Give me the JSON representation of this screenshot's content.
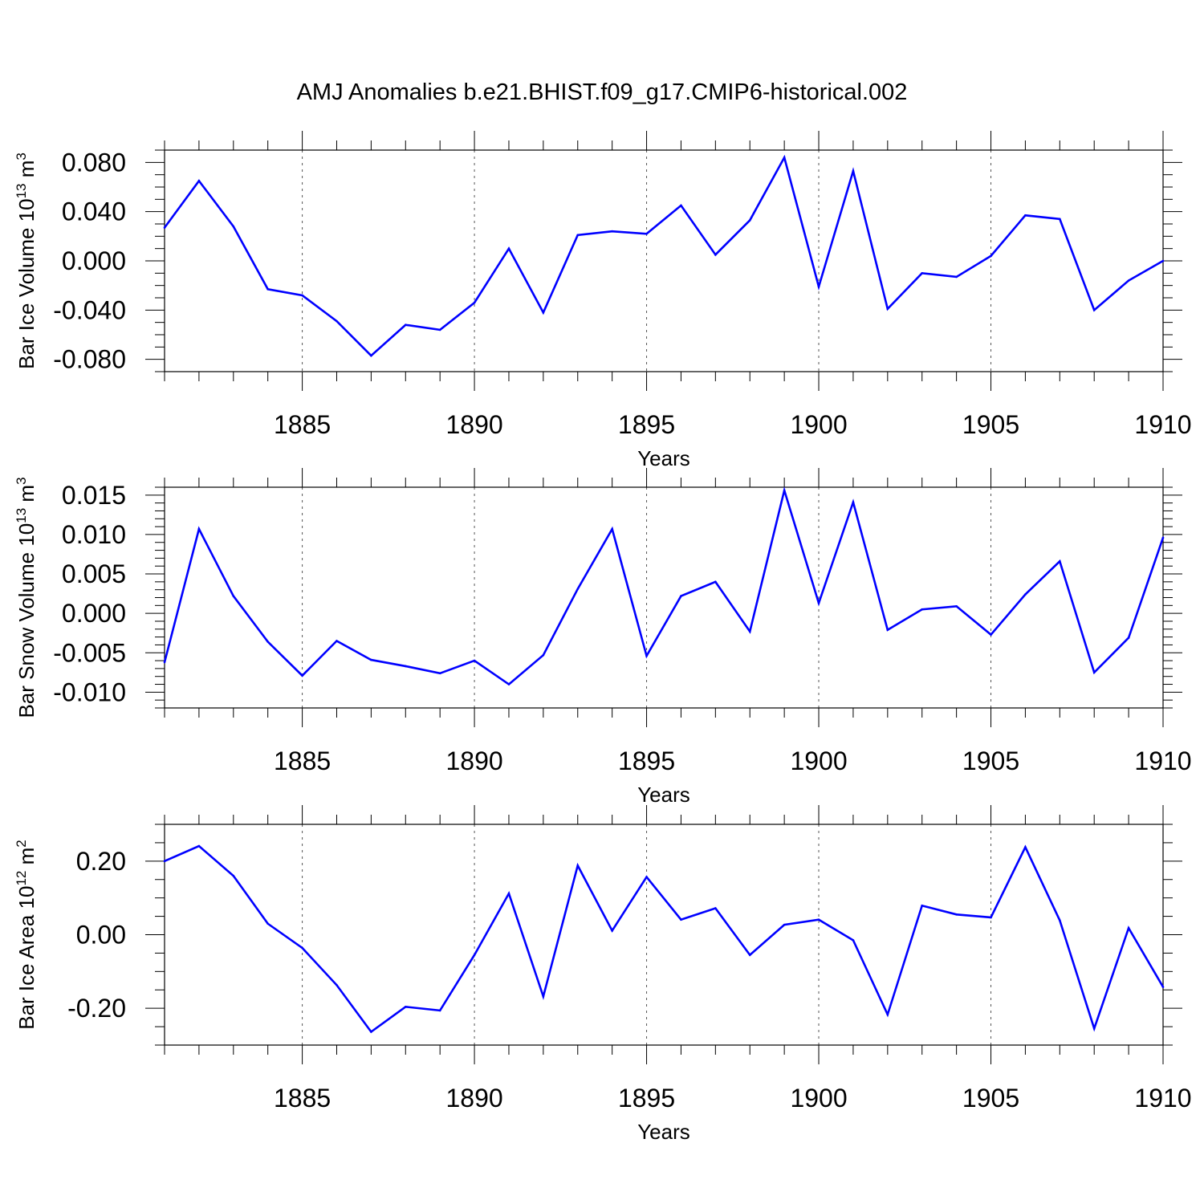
{
  "title": "AMJ Anomalies b.e21.BHIST.f09_g17.CMIP6-historical.002",
  "colors": {
    "line": "#0000ff",
    "axis": "#000000",
    "grid": "#555555",
    "background": "#ffffff"
  },
  "chart_data": [
    {
      "type": "line",
      "id": "ice-volume",
      "ylabel_main": "Bar Ice Volume 10",
      "ylabel_exp": "13",
      "ylabel_unit": " m",
      "ylabel_unit_exp": "3",
      "xlabel": "Years",
      "xlim": [
        1881,
        1910
      ],
      "ylim": [
        -0.09,
        0.09
      ],
      "xticks": [
        1885,
        1890,
        1895,
        1900,
        1905,
        1910
      ],
      "xtick_labels": [
        "1885",
        "1890",
        "1895",
        "1900",
        "1905",
        "1910"
      ],
      "yticks": [
        0.08,
        0.04,
        0.0,
        -0.04,
        -0.08
      ],
      "ytick_labels": [
        "0.080",
        "0.040",
        "0.000",
        "-0.040",
        "-0.080"
      ],
      "yminor_step": 0.01,
      "grid": "vertical-dashed",
      "x": [
        1881,
        1882,
        1883,
        1884,
        1885,
        1886,
        1887,
        1888,
        1889,
        1890,
        1891,
        1892,
        1893,
        1894,
        1895,
        1896,
        1897,
        1898,
        1899,
        1900,
        1901,
        1902,
        1903,
        1904,
        1905,
        1906,
        1907,
        1908,
        1909,
        1910
      ],
      "values": [
        0.027,
        0.065,
        0.028,
        -0.023,
        -0.028,
        -0.049,
        -0.077,
        -0.052,
        -0.056,
        -0.034,
        0.01,
        -0.042,
        0.021,
        0.024,
        0.022,
        0.045,
        0.005,
        0.033,
        0.084,
        -0.021,
        0.073,
        -0.039,
        -0.01,
        -0.013,
        0.004,
        0.037,
        0.034,
        -0.04,
        -0.016,
        0.0
      ]
    },
    {
      "type": "line",
      "id": "snow-volume",
      "ylabel_main": "Bar Snow Volume 10",
      "ylabel_exp": "13",
      "ylabel_unit": " m",
      "ylabel_unit_exp": "3",
      "xlabel": "Years",
      "xlim": [
        1881,
        1910
      ],
      "ylim": [
        -0.012,
        0.016
      ],
      "xticks": [
        1885,
        1890,
        1895,
        1900,
        1905,
        1910
      ],
      "xtick_labels": [
        "1885",
        "1890",
        "1895",
        "1900",
        "1905",
        "1910"
      ],
      "yticks": [
        0.015,
        0.01,
        0.005,
        0.0,
        -0.005,
        -0.01
      ],
      "ytick_labels": [
        "0.015",
        "0.010",
        "0.005",
        "0.000",
        "-0.005",
        "-0.010"
      ],
      "yminor_step": 0.001,
      "grid": "vertical-dashed",
      "x": [
        1881,
        1882,
        1883,
        1884,
        1885,
        1886,
        1887,
        1888,
        1889,
        1890,
        1891,
        1892,
        1893,
        1894,
        1895,
        1896,
        1897,
        1898,
        1899,
        1900,
        1901,
        1902,
        1903,
        1904,
        1905,
        1906,
        1907,
        1908,
        1909,
        1910
      ],
      "values": [
        -0.0062,
        0.0107,
        0.0022,
        -0.0036,
        -0.0079,
        -0.0035,
        -0.0059,
        -0.0067,
        -0.0076,
        -0.006,
        -0.009,
        -0.0053,
        0.0031,
        0.0107,
        -0.0054,
        0.0022,
        0.004,
        -0.0023,
        0.0156,
        0.0013,
        0.0141,
        -0.0021,
        0.0005,
        0.0009,
        -0.0027,
        0.0024,
        0.0066,
        -0.0075,
        -0.0031,
        0.0096
      ]
    },
    {
      "type": "line",
      "id": "ice-area",
      "ylabel_main": "Bar Ice Area 10",
      "ylabel_exp": "12",
      "ylabel_unit": " m",
      "ylabel_unit_exp": "2",
      "xlabel": "Years",
      "xlim": [
        1881,
        1910
      ],
      "ylim": [
        -0.3,
        0.3
      ],
      "xticks": [
        1885,
        1890,
        1895,
        1900,
        1905,
        1910
      ],
      "xtick_labels": [
        "1885",
        "1890",
        "1895",
        "1900",
        "1905",
        "1910"
      ],
      "yticks": [
        0.2,
        0.0,
        -0.2
      ],
      "ytick_labels": [
        "0.20",
        "0.00",
        "-0.20"
      ],
      "yminor_step": 0.05,
      "grid": "vertical-dashed",
      "x": [
        1881,
        1882,
        1883,
        1884,
        1885,
        1886,
        1887,
        1888,
        1889,
        1890,
        1891,
        1892,
        1893,
        1894,
        1895,
        1896,
        1897,
        1898,
        1899,
        1900,
        1901,
        1902,
        1903,
        1904,
        1905,
        1906,
        1907,
        1908,
        1909,
        1910
      ],
      "values": [
        0.2,
        0.241,
        0.16,
        0.03,
        -0.036,
        -0.137,
        -0.264,
        -0.196,
        -0.206,
        -0.055,
        0.112,
        -0.168,
        0.188,
        0.011,
        0.157,
        0.041,
        0.072,
        -0.055,
        0.027,
        0.041,
        -0.015,
        -0.217,
        0.079,
        0.055,
        0.047,
        0.238,
        0.039,
        -0.255,
        0.018,
        -0.142
      ]
    }
  ]
}
